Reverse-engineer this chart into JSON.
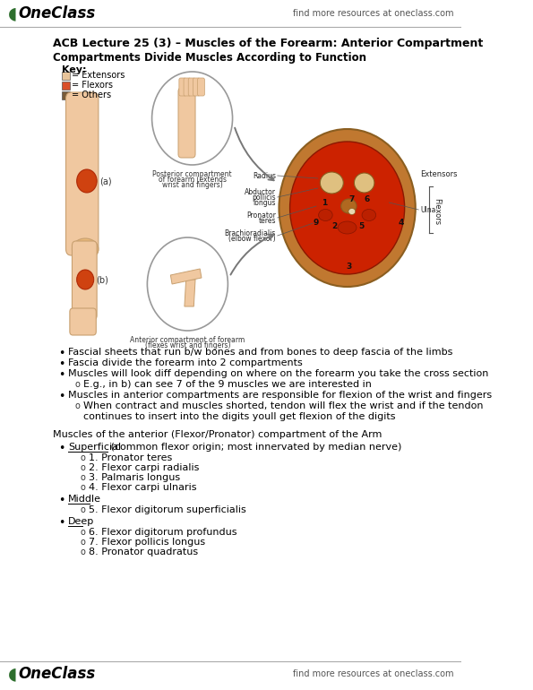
{
  "bg_color": "#ffffff",
  "header_logo_text": "OneClass",
  "header_right_text": "find more resources at oneclass.com",
  "footer_logo_text": "OneClass",
  "footer_right_text": "find more resources at oneclass.com",
  "title": "ACB Lecture 25 (3) – Muscles of the Forearm: Anterior Compartment",
  "section1_title": "Compartments Divide Muscles According to Function",
  "key_title": "Key:",
  "key_items": [
    {
      "label": "= Extensors",
      "color": "#e8c49a"
    },
    {
      "label": "= Flexors",
      "color": "#d94f2b"
    },
    {
      "label": "= Others",
      "color": "#7a5c3a"
    }
  ],
  "bullet_points": [
    "Fascial sheets that run b/w bones and from bones to deep fascia of the limbs",
    "Fascia divide the forearm into 2 compartments",
    "Muscles will look diff depending on where on the forearm you take the cross section",
    "E.g., in b) can see 7 of the 9 muscles we are interested in",
    "Muscles in anterior compartments are responsible for flexion of the wrist and fingers",
    "When contract and muscles shorted, tendon will flex the wrist and if the tendon|continues to insert into the digits youll get flexion of the digits"
  ],
  "section2_title": "Muscles of the anterior (Flexor/Pronator) compartment of the Arm",
  "muscle_groups": [
    {
      "name": "Superficial",
      "desc": " (common flexor origin; most innervated by median nerve)",
      "underline": true,
      "muscles": [
        "1. Pronator teres",
        "2. Flexor carpi radialis",
        "3. Palmaris longus",
        "4. Flexor carpi ulnaris"
      ]
    },
    {
      "name": "Middle",
      "desc": "",
      "underline": true,
      "muscles": [
        "5. Flexor digitorum superficialis"
      ]
    },
    {
      "name": "Deep",
      "desc": "",
      "underline": true,
      "muscles": [
        "6. Flexor digitorum profundus",
        "7. Flexor pollicis longus",
        "8. Pronator quadratus"
      ]
    }
  ],
  "text_color": "#000000",
  "font_size_title": 9,
  "font_size_body": 8,
  "font_size_header": 9
}
